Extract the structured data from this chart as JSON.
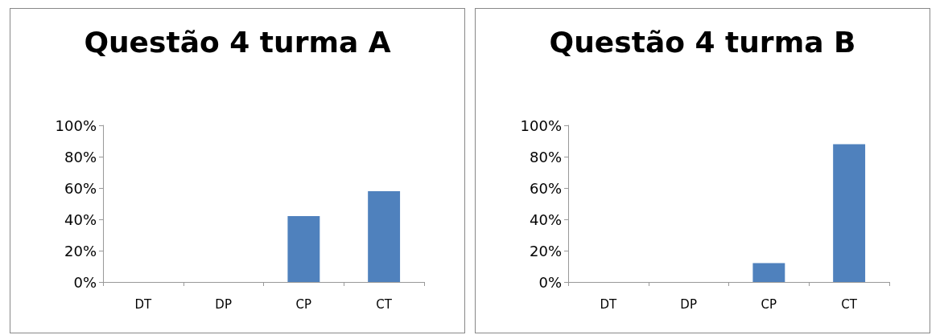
{
  "chart_data": [
    {
      "type": "bar",
      "title": "Questão 4 turma A",
      "categories": [
        "DT",
        "DP",
        "CP",
        "CT"
      ],
      "values": [
        0,
        0,
        42,
        58
      ],
      "color": "#4f81bd",
      "ylim": [
        0,
        100
      ],
      "yticks": [
        {
          "value": 0,
          "label": "0%"
        },
        {
          "value": 20,
          "label": "20%"
        },
        {
          "value": 40,
          "label": "40%"
        },
        {
          "value": 60,
          "label": "60%"
        },
        {
          "value": 80,
          "label": "80%"
        },
        {
          "value": 100,
          "label": "100%"
        }
      ],
      "grid": false
    },
    {
      "type": "bar",
      "title": "Questão 4 turma B",
      "categories": [
        "DT",
        "DP",
        "CP",
        "CT"
      ],
      "values": [
        0,
        0,
        12,
        88
      ],
      "color": "#4f81bd",
      "ylim": [
        0,
        100
      ],
      "yticks": [
        {
          "value": 0,
          "label": "0%"
        },
        {
          "value": 20,
          "label": "20%"
        },
        {
          "value": 40,
          "label": "40%"
        },
        {
          "value": 60,
          "label": "60%"
        },
        {
          "value": 80,
          "label": "80%"
        },
        {
          "value": 100,
          "label": "100%"
        }
      ],
      "grid": false
    }
  ]
}
